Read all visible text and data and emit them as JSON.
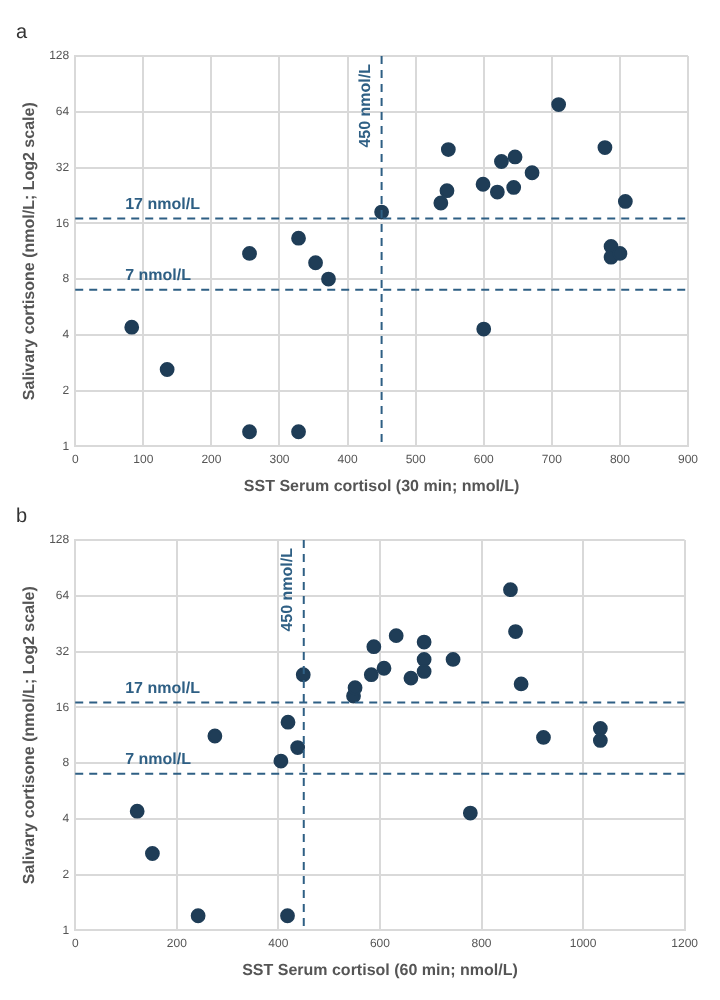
{
  "chart_data": [
    {
      "type": "scatter",
      "title": "a",
      "xlabel": "SST Serum cortisol (30 min; nmol/L)",
      "ylabel": "Salivary cortisone (nmol/L; Log2 scale)",
      "log": "y",
      "grid": true,
      "marker": "circle",
      "xlim": [
        0,
        900
      ],
      "xticks": [
        0,
        100,
        200,
        300,
        400,
        500,
        600,
        700,
        800,
        900
      ],
      "ylim": [
        1,
        128
      ],
      "yticks": [
        1,
        2,
        4,
        8,
        16,
        32,
        64,
        128
      ],
      "series": [
        {
          "color": "#1f3d57",
          "x": [
            83,
            135,
            256,
            328,
            328,
            353,
            372,
            450,
            537,
            546,
            548,
            599,
            600,
            620,
            626,
            644,
            646,
            671,
            710,
            778,
            787,
            787,
            800,
            808,
            256
          ],
          "values": [
            4.4,
            2.6,
            11,
            1.2,
            13.3,
            9.8,
            8.0,
            18.4,
            20.6,
            24,
            40,
            26,
            4.3,
            23.6,
            34.5,
            25,
            36.5,
            30,
            70,
            41,
            12,
            10.5,
            11,
            21,
            1.2
          ]
        }
      ],
      "ref_lines": [
        {
          "axis": "y",
          "value": 17,
          "label": "17 nmol/L",
          "color": "#2e5f84",
          "line_style": "dashed"
        },
        {
          "axis": "y",
          "value": 7,
          "label": "7 nmol/L",
          "color": "#2e5f84",
          "line_style": "dashed"
        },
        {
          "axis": "x",
          "value": 450,
          "label": "450 nmol/L",
          "color": "#2e5f84",
          "line_style": "dashed"
        }
      ]
    },
    {
      "type": "scatter",
      "title": "b",
      "xlabel": "SST Serum cortisol (60 min; nmol/L)",
      "ylabel": "Salivary cortisone (nmol/L; Log2 scale)",
      "log": "y",
      "grid": true,
      "marker": "circle",
      "xlim": [
        0,
        1200
      ],
      "xticks": [
        0,
        200,
        400,
        600,
        800,
        1000,
        1200
      ],
      "ylim": [
        1,
        128
      ],
      "yticks": [
        1,
        2,
        4,
        8,
        16,
        32,
        64,
        128
      ],
      "series": [
        {
          "color": "#1f3d57",
          "x": [
            122,
            152,
            242,
            275,
            405,
            418,
            419,
            438,
            449,
            548,
            551,
            583,
            588,
            608,
            632,
            661,
            687,
            687,
            687,
            744,
            778,
            857,
            867,
            878,
            922,
            1034,
            1034
          ],
          "values": [
            4.4,
            2.6,
            1.2,
            11.2,
            8.2,
            1.2,
            13.3,
            9.7,
            24,
            18.4,
            20.4,
            24,
            34,
            26,
            39,
            23,
            36,
            29,
            25,
            29,
            4.3,
            69,
            41,
            21.4,
            11,
            12.3,
            10.6
          ]
        }
      ],
      "ref_lines": [
        {
          "axis": "y",
          "value": 17,
          "label": "17 nmol/L",
          "color": "#2e5f84",
          "line_style": "dashed"
        },
        {
          "axis": "y",
          "value": 7,
          "label": "7 nmol/L",
          "color": "#2e5f84",
          "line_style": "dashed"
        },
        {
          "axis": "x",
          "value": 450,
          "label": "450 nmol/L",
          "color": "#2e5f84",
          "line_style": "dashed"
        }
      ]
    }
  ]
}
